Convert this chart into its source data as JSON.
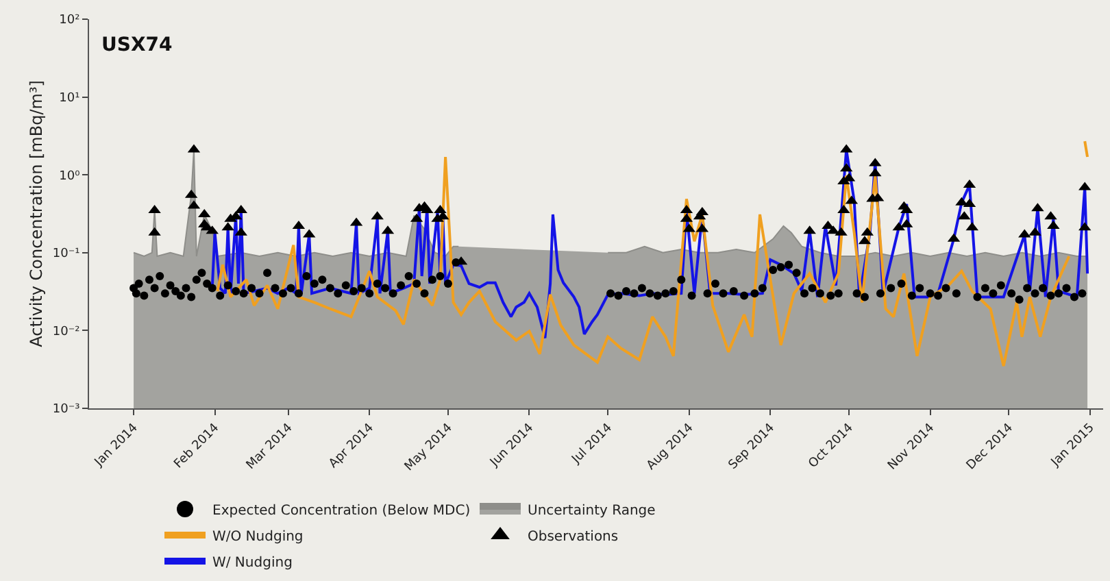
{
  "chart_data": {
    "type": "line",
    "title": "USX74",
    "ylabel": "Activity Concentration [mBq/m³]",
    "log": "y",
    "xlim": [
      "2013-12-15",
      "2015-01-06"
    ],
    "xticks": [
      {
        "value": "2014-01-01",
        "label": "Jan 2014"
      },
      {
        "value": "2014-02-01",
        "label": "Feb 2014"
      },
      {
        "value": "2014-03-01",
        "label": "Mar 2014"
      },
      {
        "value": "2014-04-01",
        "label": "Apr 2014"
      },
      {
        "value": "2014-05-01",
        "label": "May 2014"
      },
      {
        "value": "2014-06-01",
        "label": "Jun 2014"
      },
      {
        "value": "2014-07-01",
        "label": "Jul 2014"
      },
      {
        "value": "2014-08-01",
        "label": "Aug 2014"
      },
      {
        "value": "2014-09-01",
        "label": "Sep 2014"
      },
      {
        "value": "2014-10-01",
        "label": "Oct 2014"
      },
      {
        "value": "2014-11-01",
        "label": "Nov 2014"
      },
      {
        "value": "2014-12-01",
        "label": "Dec 2014"
      },
      {
        "value": "2015-01-01",
        "label": "Jan 2015"
      }
    ],
    "ylim": [
      0.001,
      100
    ],
    "yticks": [
      {
        "value": 0.001,
        "label": "10⁻³"
      },
      {
        "value": 0.01,
        "label": "10⁻²"
      },
      {
        "value": 0.1,
        "label": "10⁻¹"
      },
      {
        "value": 1,
        "label": "10⁰"
      },
      {
        "value": 10,
        "label": "10¹"
      },
      {
        "value": 100,
        "label": "10²"
      }
    ],
    "grid": false,
    "legend": "bottom",
    "series": [
      {
        "name": "Expected Concentration (Below MDC)",
        "type": "scatter",
        "marker": "circle",
        "color": "#000000",
        "x": [
          "2014-01-01",
          "2014-01-02",
          "2014-01-03",
          "2014-01-05",
          "2014-01-07",
          "2014-01-09",
          "2014-01-11",
          "2014-01-13",
          "2014-01-15",
          "2014-01-17",
          "2014-01-19",
          "2014-01-21",
          "2014-01-23",
          "2014-01-25",
          "2014-01-27",
          "2014-01-29",
          "2014-01-31",
          "2014-02-03",
          "2014-02-06",
          "2014-02-09",
          "2014-02-12",
          "2014-02-15",
          "2014-02-18",
          "2014-02-21",
          "2014-02-24",
          "2014-02-27",
          "2014-03-02",
          "2014-03-05",
          "2014-03-08",
          "2014-03-11",
          "2014-03-14",
          "2014-03-17",
          "2014-03-20",
          "2014-03-23",
          "2014-03-26",
          "2014-03-29",
          "2014-04-01",
          "2014-04-04",
          "2014-04-07",
          "2014-04-10",
          "2014-04-13",
          "2014-04-16",
          "2014-04-19",
          "2014-04-22",
          "2014-04-25",
          "2014-04-28",
          "2014-05-01",
          "2014-05-04",
          "2014-07-02",
          "2014-07-05",
          "2014-07-08",
          "2014-07-11",
          "2014-07-14",
          "2014-07-17",
          "2014-07-20",
          "2014-07-23",
          "2014-07-26",
          "2014-07-29",
          "2014-08-02",
          "2014-08-08",
          "2014-08-11",
          "2014-08-14",
          "2014-08-18",
          "2014-08-22",
          "2014-08-26",
          "2014-08-29",
          "2014-09-02",
          "2014-09-05",
          "2014-09-08",
          "2014-09-11",
          "2014-09-14",
          "2014-09-17",
          "2014-09-20",
          "2014-09-24",
          "2014-09-27",
          "2014-10-04",
          "2014-10-07",
          "2014-10-13",
          "2014-10-17",
          "2014-10-21",
          "2014-10-25",
          "2014-10-28",
          "2014-11-01",
          "2014-11-04",
          "2014-11-07",
          "2014-11-11",
          "2014-11-19",
          "2014-11-22",
          "2014-11-25",
          "2014-11-28",
          "2014-12-02",
          "2014-12-05",
          "2014-12-08",
          "2014-12-11",
          "2014-12-14",
          "2014-12-17",
          "2014-12-20",
          "2014-12-23",
          "2014-12-26",
          "2014-12-29"
        ],
        "values": [
          0.035,
          0.03,
          0.04,
          0.028,
          0.045,
          0.035,
          0.05,
          0.03,
          0.038,
          0.032,
          0.028,
          0.035,
          0.027,
          0.045,
          0.055,
          0.04,
          0.035,
          0.028,
          0.038,
          0.032,
          0.03,
          0.035,
          0.03,
          0.055,
          0.035,
          0.03,
          0.035,
          0.03,
          0.05,
          0.04,
          0.045,
          0.035,
          0.03,
          0.038,
          0.032,
          0.035,
          0.03,
          0.04,
          0.035,
          0.03,
          0.038,
          0.05,
          0.04,
          0.03,
          0.045,
          0.05,
          0.04,
          0.075,
          0.03,
          0.028,
          0.032,
          0.03,
          0.035,
          0.03,
          0.028,
          0.03,
          0.032,
          0.045,
          0.028,
          0.03,
          0.04,
          0.03,
          0.032,
          0.028,
          0.03,
          0.035,
          0.06,
          0.065,
          0.07,
          0.055,
          0.03,
          0.035,
          0.03,
          0.028,
          0.03,
          0.03,
          0.027,
          0.03,
          0.035,
          0.04,
          0.028,
          0.035,
          0.03,
          0.028,
          0.035,
          0.03,
          0.027,
          0.035,
          0.03,
          0.038,
          0.03,
          0.025,
          0.035,
          0.03,
          0.035,
          0.028,
          0.03,
          0.035,
          0.027,
          0.03
        ]
      },
      {
        "name": "Observations",
        "type": "scatter",
        "marker": "triangle",
        "color": "#000000",
        "x": [
          "2014-01-09",
          "2014-01-09",
          "2014-01-24",
          "2014-01-23",
          "2014-01-24",
          "2014-01-28",
          "2014-01-28",
          "2014-01-29",
          "2014-01-31",
          "2014-02-06",
          "2014-02-07",
          "2014-02-09",
          "2014-02-11",
          "2014-02-11",
          "2014-03-05",
          "2014-03-09",
          "2014-03-27",
          "2014-04-04",
          "2014-04-08",
          "2014-04-19",
          "2014-04-20",
          "2014-04-22",
          "2014-04-23",
          "2014-04-27",
          "2014-04-28",
          "2014-04-29",
          "2014-05-06",
          "2014-07-31",
          "2014-07-31",
          "2014-08-01",
          "2014-08-05",
          "2014-08-06",
          "2014-08-06",
          "2014-09-16",
          "2014-09-23",
          "2014-09-25",
          "2014-09-28",
          "2014-09-29",
          "2014-09-29",
          "2014-09-30",
          "2014-09-30",
          "2014-10-01",
          "2014-10-02",
          "2014-10-07",
          "2014-10-08",
          "2014-10-10",
          "2014-10-11",
          "2014-10-11",
          "2014-10-12",
          "2014-10-20",
          "2014-10-22",
          "2014-10-23",
          "2014-10-23",
          "2014-11-10",
          "2014-11-13",
          "2014-11-14",
          "2014-11-16",
          "2014-11-16",
          "2014-11-17",
          "2014-12-07",
          "2014-12-11",
          "2014-12-12",
          "2014-12-17",
          "2014-12-18",
          "2014-12-30",
          "2014-12-30"
        ],
        "values": [
          0.35,
          0.18,
          2.1,
          0.55,
          0.4,
          0.31,
          0.23,
          0.21,
          0.19,
          0.21,
          0.27,
          0.29,
          0.35,
          0.18,
          0.22,
          0.17,
          0.24,
          0.29,
          0.19,
          0.27,
          0.37,
          0.39,
          0.35,
          0.27,
          0.35,
          0.29,
          0.076,
          0.35,
          0.27,
          0.2,
          0.29,
          0.33,
          0.2,
          0.19,
          0.22,
          0.19,
          0.18,
          0.35,
          0.82,
          2.1,
          1.2,
          0.9,
          0.46,
          0.14,
          0.18,
          0.49,
          1.04,
          1.4,
          0.5,
          0.21,
          0.39,
          0.35,
          0.23,
          0.15,
          0.44,
          0.29,
          0.74,
          0.42,
          0.21,
          0.17,
          0.18,
          0.37,
          0.29,
          0.22,
          0.69,
          0.21
        ]
      },
      {
        "name": "Uncertainty Range",
        "type": "area",
        "color": "#a3a39f",
        "x": [
          "2014-01-01",
          "2014-01-05",
          "2014-01-08",
          "2014-01-09",
          "2014-01-10",
          "2014-01-15",
          "2014-01-20",
          "2014-01-23",
          "2014-01-24",
          "2014-01-25",
          "2014-01-28",
          "2014-01-31",
          "2014-02-02",
          "2014-02-11",
          "2014-02-18",
          "2014-02-25",
          "2014-03-04",
          "2014-03-11",
          "2014-03-18",
          "2014-03-25",
          "2014-04-01",
          "2014-04-08",
          "2014-04-15",
          "2014-04-18",
          "2014-04-22",
          "2014-04-26",
          "2014-04-30",
          "2014-05-03",
          "2014-05-05",
          "2014-05-06",
          "2014-06-30",
          "2014-07-01",
          "2014-07-08",
          "2014-07-15",
          "2014-07-22",
          "2014-07-29",
          "2014-08-05",
          "2014-08-12",
          "2014-08-19",
          "2014-08-26",
          "2014-09-02",
          "2014-09-06",
          "2014-09-09",
          "2014-09-13",
          "2014-09-20",
          "2014-09-27",
          "2014-10-04",
          "2014-10-11",
          "2014-10-18",
          "2014-10-25",
          "2014-11-01",
          "2014-11-08",
          "2014-11-15",
          "2014-11-22",
          "2014-11-29",
          "2014-12-06",
          "2014-12-13",
          "2014-12-20",
          "2014-12-27",
          "2014-12-31"
        ],
        "values": [
          0.1,
          0.09,
          0.1,
          0.35,
          0.09,
          0.1,
          0.09,
          0.55,
          2.1,
          0.09,
          0.31,
          0.19,
          0.09,
          0.1,
          0.09,
          0.1,
          0.09,
          0.1,
          0.09,
          0.1,
          0.09,
          0.1,
          0.09,
          0.3,
          0.2,
          0.1,
          0.09,
          0.12,
          0.12,
          null,
          null,
          0.1,
          0.1,
          0.12,
          0.1,
          0.11,
          0.1,
          0.1,
          0.11,
          0.1,
          0.15,
          0.22,
          0.18,
          0.12,
          0.1,
          0.09,
          0.09,
          0.1,
          0.09,
          0.1,
          0.09,
          0.1,
          0.09,
          0.1,
          0.09,
          0.1,
          0.09,
          0.1,
          0.09,
          0.09
        ]
      },
      {
        "name": "W/ Nudging",
        "color": "#1414e6",
        "x": [
          "2014-01-31",
          "2014-02-01",
          "2014-02-03",
          "2014-02-05",
          "2014-02-06",
          "2014-02-07",
          "2014-02-09",
          "2014-02-10",
          "2014-02-11",
          "2014-02-12",
          "2014-02-16",
          "2014-02-21",
          "2014-02-25",
          "2014-03-01",
          "2014-03-04",
          "2014-03-05",
          "2014-03-06",
          "2014-03-09",
          "2014-03-10",
          "2014-03-17",
          "2014-03-25",
          "2014-03-27",
          "2014-03-28",
          "2014-04-01",
          "2014-04-04",
          "2014-04-05",
          "2014-04-08",
          "2014-04-09",
          "2014-04-14",
          "2014-04-18",
          "2014-04-20",
          "2014-04-21",
          "2014-04-23",
          "2014-04-24",
          "2014-04-27",
          "2014-04-28",
          "2014-04-29",
          "2014-04-30",
          "2014-05-03",
          "2014-05-06",
          "2014-05-09",
          "2014-05-13",
          "2014-05-16",
          "2014-05-19",
          "2014-05-22",
          "2014-05-25",
          "2014-05-27",
          "2014-05-30",
          "2014-06-01",
          "2014-06-04",
          "2014-06-07",
          "2014-06-09",
          "2014-06-10",
          "2014-06-12",
          "2014-06-14",
          "2014-06-18",
          "2014-06-20",
          "2014-06-22",
          "2014-06-25",
          "2014-06-27",
          "2014-07-01",
          "2014-07-06",
          "2014-07-13",
          "2014-07-18",
          "2014-07-23",
          "2014-07-29",
          "2014-07-31",
          "2014-08-03",
          "2014-08-06",
          "2014-08-09",
          "2014-08-16",
          "2014-08-22",
          "2014-08-29",
          "2014-09-01",
          "2014-09-05",
          "2014-09-10",
          "2014-09-13",
          "2014-09-16",
          "2014-09-19",
          "2014-09-22",
          "2014-09-26",
          "2014-09-30",
          "2014-10-03",
          "2014-10-05",
          "2014-10-09",
          "2014-10-11",
          "2014-10-14",
          "2014-10-20",
          "2014-10-23",
          "2014-10-26",
          "2014-10-31",
          "2014-11-04",
          "2014-11-10",
          "2014-11-13",
          "2014-11-16",
          "2014-11-19",
          "2014-11-29",
          "2014-12-07",
          "2014-12-09",
          "2014-12-12",
          "2014-12-15",
          "2014-12-18",
          "2014-12-20",
          "2014-12-27",
          "2014-12-30",
          "2014-12-31"
        ],
        "values": [
          0.035,
          0.18,
          0.035,
          0.03,
          0.21,
          0.03,
          0.29,
          0.04,
          0.35,
          0.03,
          0.032,
          0.035,
          0.03,
          0.035,
          0.03,
          0.22,
          0.03,
          0.17,
          0.03,
          0.035,
          0.03,
          0.24,
          0.03,
          0.035,
          0.27,
          0.03,
          0.19,
          0.03,
          0.035,
          0.04,
          0.37,
          0.05,
          0.37,
          0.04,
          0.34,
          0.05,
          0.29,
          0.04,
          0.07,
          0.068,
          0.04,
          0.036,
          0.041,
          0.041,
          0.023,
          0.015,
          0.02,
          0.023,
          0.03,
          0.02,
          0.008,
          0.04,
          0.31,
          0.06,
          0.041,
          0.027,
          0.02,
          0.009,
          0.013,
          0.016,
          0.029,
          0.03,
          0.028,
          0.03,
          0.029,
          0.03,
          0.35,
          0.03,
          0.31,
          0.03,
          0.03,
          0.029,
          0.03,
          0.081,
          0.07,
          0.054,
          0.032,
          0.19,
          0.027,
          0.22,
          0.038,
          2.1,
          0.46,
          0.027,
          0.18,
          1.45,
          0.03,
          0.21,
          0.42,
          0.027,
          0.027,
          0.03,
          0.15,
          0.44,
          0.74,
          0.027,
          0.027,
          0.17,
          0.032,
          0.37,
          0.027,
          0.27,
          0.032,
          0.027,
          0.69,
          0.054
        ]
      },
      {
        "name": "W/O Nudging",
        "color": "#f0a020",
        "x": [
          "2014-02-02",
          "2014-02-04",
          "2014-02-07",
          "2014-02-13",
          "2014-02-16",
          "2014-02-21",
          "2014-02-25",
          "2014-03-03",
          "2014-03-05",
          "2014-03-11",
          "2014-03-17",
          "2014-03-25",
          "2014-04-01",
          "2014-04-04",
          "2014-04-11",
          "2014-04-14",
          "2014-04-18",
          "2014-04-25",
          "2014-04-28",
          "2014-04-30",
          "2014-05-03",
          "2014-05-06",
          "2014-05-09",
          "2014-05-13",
          "2014-05-19",
          "2014-05-27",
          "2014-06-01",
          "2014-06-05",
          "2014-06-09",
          "2014-06-13",
          "2014-06-18",
          "2014-06-27",
          "2014-07-01",
          "2014-07-06",
          "2014-07-13",
          "2014-07-18",
          "2014-07-23",
          "2014-07-26",
          "2014-07-31",
          "2014-08-03",
          "2014-08-06",
          "2014-08-10",
          "2014-08-16",
          "2014-08-22",
          "2014-08-25",
          "2014-08-28",
          "2014-09-01",
          "2014-09-05",
          "2014-09-10",
          "2014-09-16",
          "2014-09-22",
          "2014-09-27",
          "2014-09-30",
          "2014-10-03",
          "2014-10-06",
          "2014-10-11",
          "2014-10-15",
          "2014-10-18",
          "2014-10-22",
          "2014-10-27",
          "2014-11-01",
          "2014-11-08",
          "2014-11-13",
          "2014-11-17",
          "2014-11-24",
          "2014-11-29",
          "2014-12-04",
          "2014-12-06",
          "2014-12-09",
          "2014-12-13",
          "2014-12-17",
          "2014-12-24",
          "2014-12-29",
          "2014-12-30",
          "2014-12-31"
        ],
        "values": [
          0.032,
          0.07,
          0.027,
          0.045,
          0.021,
          0.038,
          0.019,
          0.125,
          0.027,
          0.023,
          0.019,
          0.015,
          0.058,
          0.027,
          0.018,
          0.012,
          0.045,
          0.021,
          0.045,
          1.7,
          0.023,
          0.016,
          0.023,
          0.032,
          0.013,
          0.0075,
          0.0098,
          0.005,
          0.029,
          0.0117,
          0.0065,
          0.0039,
          0.0083,
          0.0059,
          0.0042,
          0.015,
          0.0083,
          0.0047,
          0.49,
          0.14,
          0.31,
          0.021,
          0.0053,
          0.016,
          0.0083,
          0.31,
          0.045,
          0.0065,
          0.03,
          0.054,
          0.023,
          0.054,
          0.98,
          0.18,
          0.023,
          0.98,
          0.019,
          0.015,
          0.054,
          0.0047,
          0.027,
          0.038,
          0.058,
          0.032,
          0.019,
          0.0035,
          0.023,
          0.0083,
          0.027,
          0.0083,
          0.027,
          0.09,
          null,
          2.7,
          1.7
        ]
      }
    ]
  }
}
